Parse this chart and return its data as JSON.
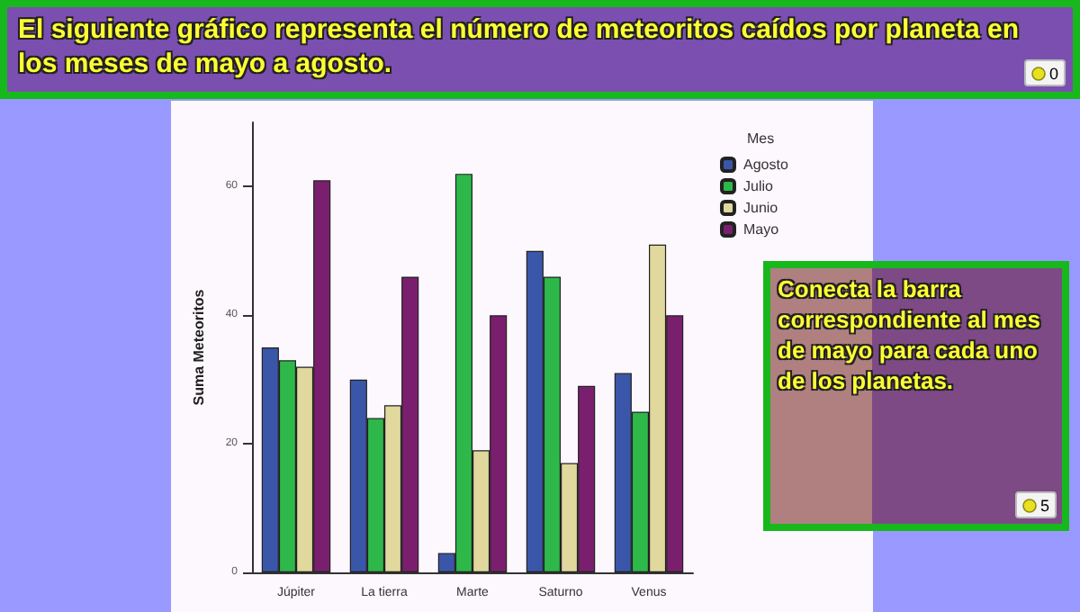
{
  "chart_data": {
    "type": "bar",
    "title": "El siguiente gráfico representa el número de meteoritos caídos por planeta en los meses de mayo a agosto.",
    "ylabel": "Suma Meteoritos",
    "legend_title": "Mes",
    "categories": [
      "Júpiter",
      "La tierra",
      "Marte",
      "Saturno",
      "Venus"
    ],
    "series": [
      {
        "name": "Agosto",
        "color": "#3a56a8",
        "values": [
          35,
          30,
          3,
          50,
          31
        ]
      },
      {
        "name": "Julio",
        "color": "#2eb84a",
        "values": [
          33,
          24,
          62,
          46,
          25
        ]
      },
      {
        "name": "Junio",
        "color": "#e0d89c",
        "values": [
          32,
          26,
          19,
          17,
          51
        ]
      },
      {
        "name": "Mayo",
        "color": "#7a1f6e",
        "values": [
          61,
          46,
          40,
          29,
          40
        ]
      }
    ],
    "ylim": [
      0,
      70
    ],
    "yticks": [
      0,
      20,
      40,
      60
    ],
    "grid": false,
    "legend": "top right",
    "annotations": [
      "0",
      "Conecta la barra correspondiente al mes de mayo para cada uno de los planetas.",
      "5"
    ]
  }
}
